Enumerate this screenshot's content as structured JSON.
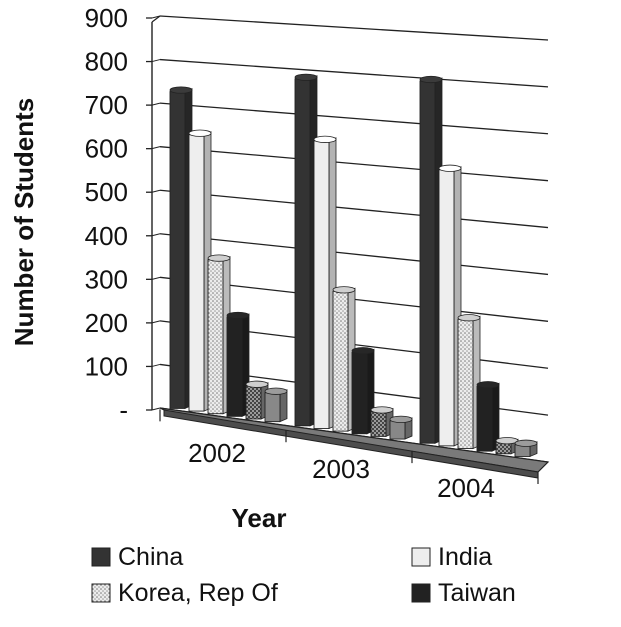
{
  "chart_data": {
    "type": "bar",
    "categories": [
      "2002",
      "2003",
      "2004"
    ],
    "series": [
      {
        "name": "China",
        "values": [
          725,
          775,
          790
        ],
        "color": "#333333",
        "pattern": "solid"
      },
      {
        "name": "India",
        "values": [
          630,
          640,
          600
        ],
        "color": "#eeeeee",
        "pattern": "solid"
      },
      {
        "name": "Korea, Rep Of",
        "values": [
          350,
          310,
          280
        ],
        "color": "#dddddd",
        "pattern": "dots"
      },
      {
        "name": "Taiwan",
        "values": [
          225,
          180,
          140
        ],
        "color": "#222222",
        "pattern": "solid"
      },
      {
        "name": "",
        "values": [
          75,
          55,
          25
        ],
        "color": "#aaaaaa",
        "pattern": "checker"
      },
      {
        "name": "",
        "values": [
          65,
          40,
          25
        ],
        "color": "#888888",
        "pattern": "solid"
      }
    ],
    "y_ticks": [
      "-",
      "100",
      "200",
      "300",
      "400",
      "500",
      "600",
      "700",
      "800",
      "900"
    ],
    "ylim": [
      0,
      900
    ],
    "xlabel": "Year",
    "ylabel": "Number of Students",
    "grid": true,
    "legend": "bottom",
    "view": "3d-perspective"
  }
}
